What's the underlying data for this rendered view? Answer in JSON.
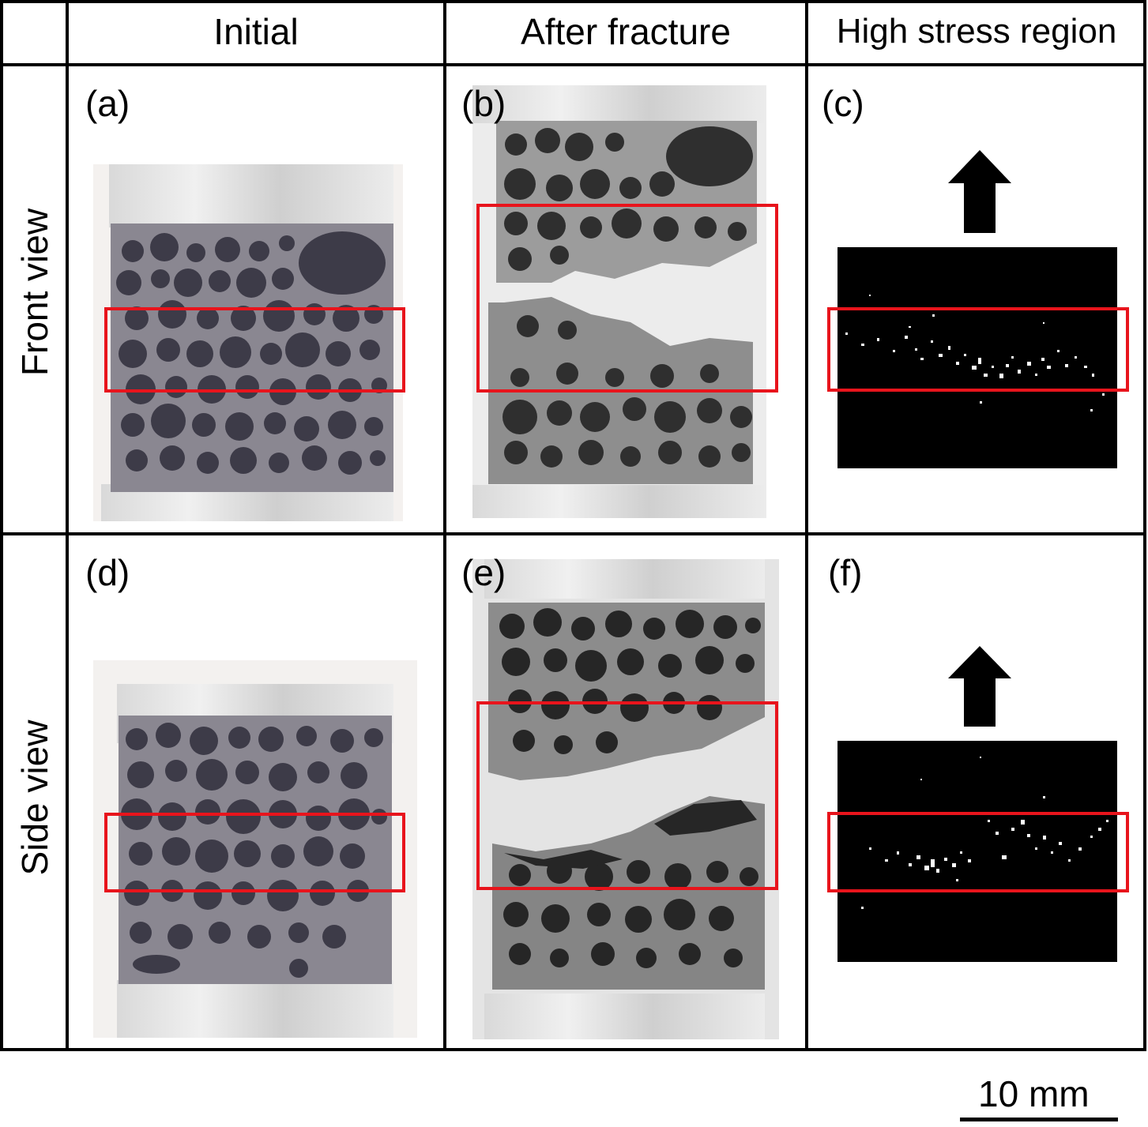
{
  "headers": {
    "col1": "Initial",
    "col2": "After fracture",
    "col3": "High stress region"
  },
  "rows": {
    "row1": "Front view",
    "row2": "Side view"
  },
  "panels": {
    "a": "(a)",
    "b": "(b)",
    "c": "(c)",
    "d": "(d)",
    "e": "(e)",
    "f": "(f)"
  },
  "scale_bar": "10 mm",
  "colors": {
    "grid": "#000000",
    "highlight": "#e8141c",
    "stress_bg": "#000000",
    "stress_points": "#ffffff"
  }
}
